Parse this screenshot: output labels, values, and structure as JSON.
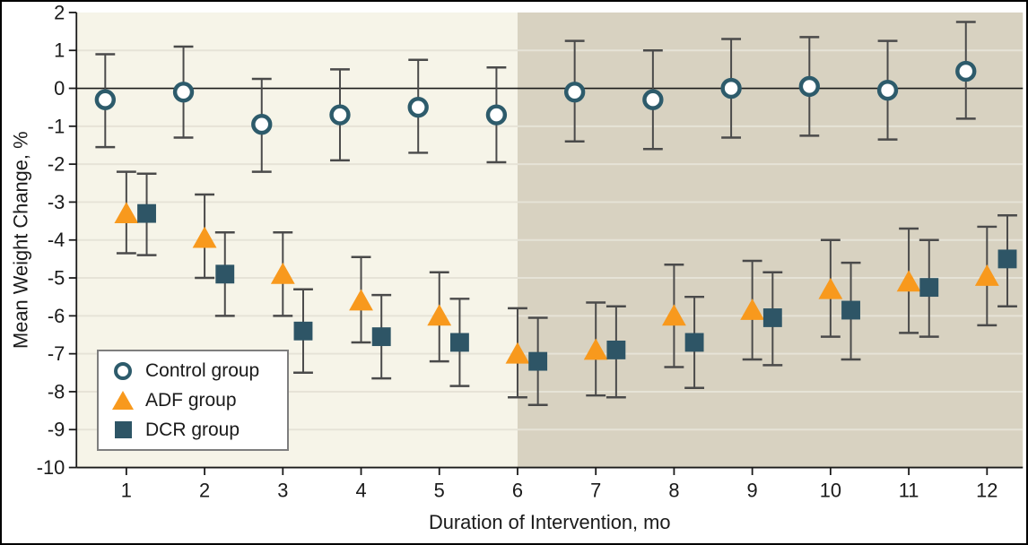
{
  "figure": {
    "colors": {
      "plot_bg_left": "#f6f4e8",
      "plot_bg_right": "#d8d2c1",
      "grid": "#e6e3d7",
      "zero_line": "#1a1a1a",
      "axis": "#1a1a1a",
      "text": "#1a1a1a",
      "error_bar": "#4a4a4a",
      "legend_border": "#7e7e7e",
      "control": "#2d5b6b",
      "adf": "#f8991d",
      "dcr": "#2e5566"
    }
  },
  "chart_data": {
    "type": "scatter",
    "title": "",
    "xlabel": "Duration of Intervention, mo",
    "ylabel": "Mean Weight Change, %",
    "ylim": [
      -10,
      2
    ],
    "x": [
      1,
      2,
      3,
      4,
      5,
      6,
      7,
      8,
      9,
      10,
      11,
      12
    ],
    "yticks": [
      2,
      1,
      0,
      -1,
      -2,
      -3,
      -4,
      -5,
      -6,
      -7,
      -8,
      -9,
      -10
    ],
    "grid": "horizontal",
    "band_split_month": 6,
    "legend_position": "lower-left",
    "series": [
      {
        "name": "Control group",
        "marker": "circle",
        "color": "#2d5b6b",
        "offset_mo": -0.27,
        "values": [
          -0.3,
          -0.1,
          -0.95,
          -0.7,
          -0.5,
          -0.7,
          -0.1,
          -0.3,
          0,
          0.05,
          -0.05,
          0.45
        ],
        "ci_high": [
          0.9,
          1.1,
          0.25,
          0.5,
          0.75,
          0.55,
          1.25,
          1.0,
          1.3,
          1.35,
          1.25,
          1.75
        ],
        "ci_low": [
          -1.55,
          -1.3,
          -2.2,
          -1.9,
          -1.7,
          -1.95,
          -1.4,
          -1.6,
          -1.3,
          -1.25,
          -1.35,
          -0.8
        ]
      },
      {
        "name": "ADF group",
        "marker": "triangle",
        "color": "#f8991d",
        "offset_mo": 0,
        "values": [
          -3.3,
          -3.95,
          -4.9,
          -5.6,
          -6.0,
          -7.0,
          -6.9,
          -6.0,
          -5.85,
          -5.3,
          -5.1,
          -4.95
        ],
        "ci_high": [
          -2.2,
          -2.8,
          -3.8,
          -4.45,
          -4.85,
          -5.8,
          -5.65,
          -4.65,
          -4.55,
          -4.0,
          -3.7,
          -3.65
        ],
        "ci_low": [
          -4.35,
          -5.0,
          -6.0,
          -6.7,
          -7.2,
          -8.15,
          -8.1,
          -7.35,
          -7.15,
          -6.55,
          -6.45,
          -6.25
        ]
      },
      {
        "name": "DCR group",
        "marker": "square",
        "color": "#2e5566",
        "offset_mo": 0.26,
        "values": [
          -3.3,
          -4.9,
          -6.4,
          -6.55,
          -6.7,
          -7.2,
          -6.9,
          -6.7,
          -6.05,
          -5.85,
          -5.25,
          -4.5
        ],
        "ci_high": [
          -2.25,
          -3.8,
          -5.3,
          -5.45,
          -5.55,
          -6.05,
          -5.75,
          -5.5,
          -4.85,
          -4.6,
          -4.0,
          -3.35
        ],
        "ci_low": [
          -4.4,
          -6.0,
          -7.5,
          -7.65,
          -7.85,
          -8.35,
          -8.15,
          -7.9,
          -7.3,
          -7.15,
          -6.55,
          -5.75
        ]
      }
    ]
  }
}
